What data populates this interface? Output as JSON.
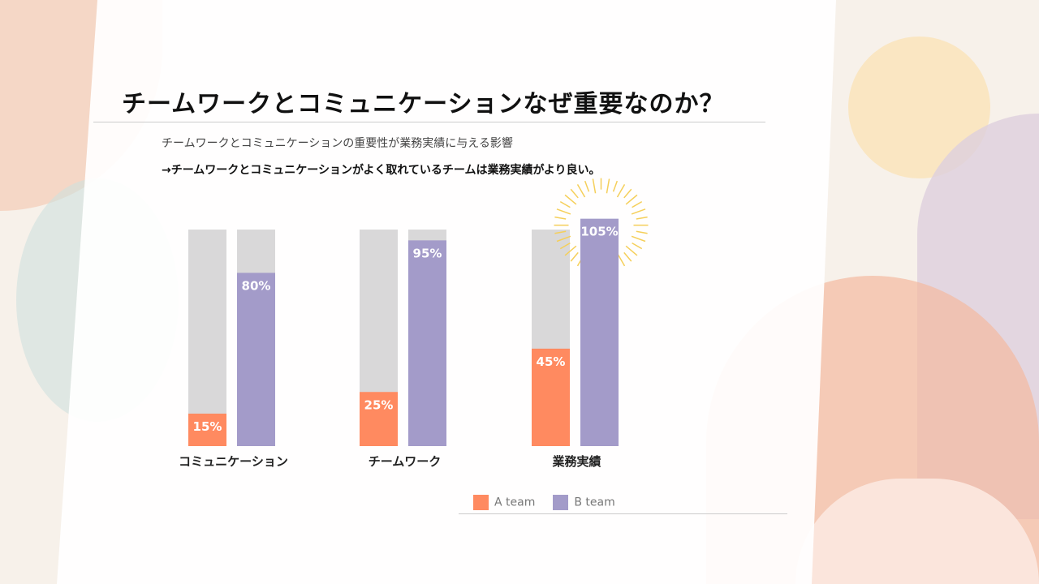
{
  "slide": {
    "title": "チームワークとコミュニケーションなぜ重要なのか？",
    "subtitle": "チームワークとコミュニケーションの重要性が業務実績に与える影響",
    "conclusion": "→チームワークとコミュニケーションがよく取れているチームは業務実績がより良い。"
  },
  "chart_data": {
    "type": "bar",
    "categories": [
      "コミュニケーション",
      "チームワーク",
      "業務実績"
    ],
    "series": [
      {
        "name": "A team",
        "values": [
          15,
          25,
          45
        ],
        "color": "#ff8a60"
      },
      {
        "name": "B team",
        "values": [
          80,
          95,
          105
        ],
        "color": "#a39bc9"
      }
    ],
    "labels": {
      "A team": [
        "15%",
        "25%",
        "45%"
      ],
      "B team": [
        "80%",
        "95%",
        "105%"
      ]
    },
    "ylim": [
      0,
      100
    ],
    "background_bar_color": "#d9d8d9",
    "highlight": "105%",
    "legend": "bottom-right"
  }
}
